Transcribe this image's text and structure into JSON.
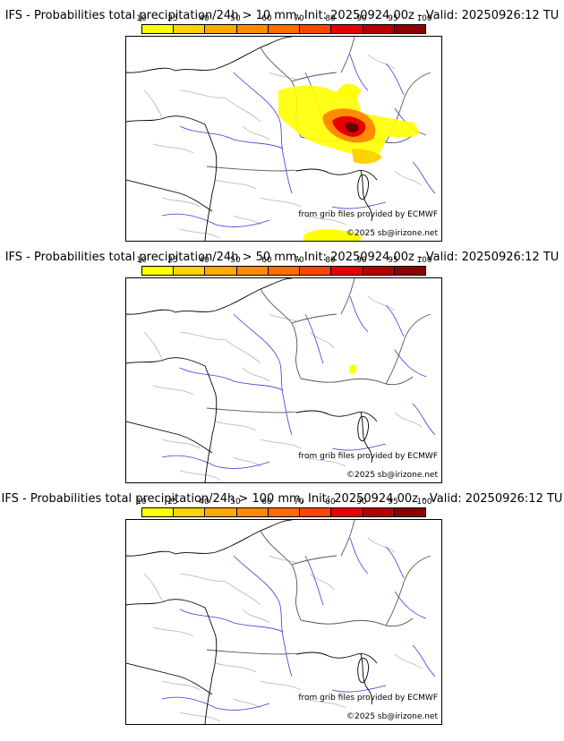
{
  "scale": {
    "ticks": [
      "10",
      "25",
      "40",
      "50",
      "60",
      "70",
      "80",
      "90",
      "95",
      "100"
    ],
    "colors": [
      "#ffff00",
      "#ffd200",
      "#ffaa00",
      "#ff8c00",
      "#ff6e00",
      "#ff4600",
      "#e60000",
      "#b40000",
      "#8c0000",
      "#640000"
    ]
  },
  "panels": [
    {
      "title": "IFS - Probabilities total precipitation/24h > 10 mm, Init: 20250924 00z - Valid: 20250926:12 TU",
      "credit_grib": "from grib files provided by ECMWF",
      "credit_copy": "©2025 sb@irizone.net",
      "max_probability_class": "95",
      "region": "Alps / eastern France"
    },
    {
      "title": "IFS - Probabilities total precipitation/24h > 50 mm, Init: 20250924 00z - Valid: 20250926:12 TU",
      "credit_grib": "from grib files provided by ECMWF",
      "credit_copy": "©2025 sb@irizone.net",
      "max_probability_class": "10",
      "region": "Western Alps"
    },
    {
      "title": "IFS - Probabilities total precipitation/24h > 100 mm, Init: 20250924 00z - Valid: 20250926:12 TU",
      "credit_grib": "from grib files provided by ECMWF",
      "credit_copy": "©2025 sb@irizone.net",
      "max_probability_class": "0",
      "region": "none"
    }
  ]
}
